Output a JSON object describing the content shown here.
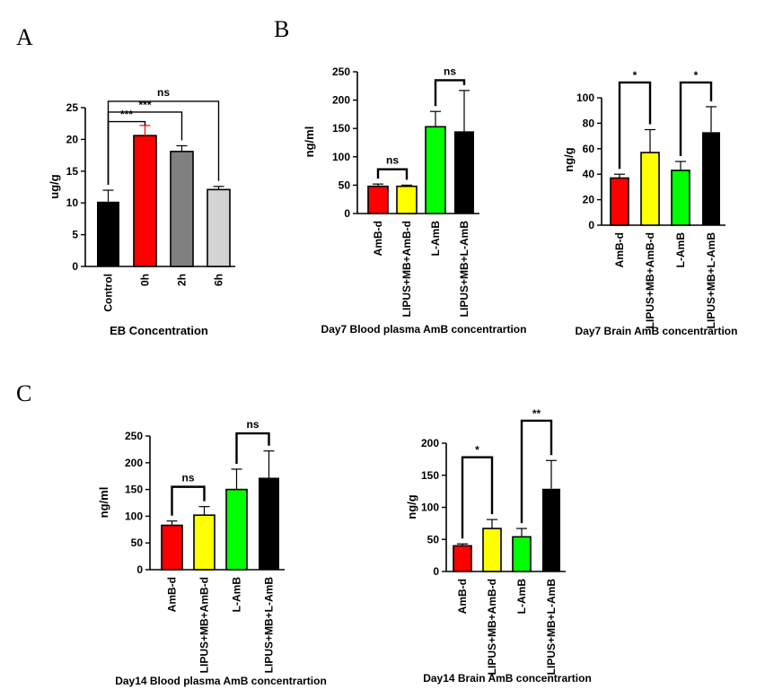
{
  "panel_letters": {
    "a": "A",
    "b": "B",
    "c": "C"
  },
  "chart_data": [
    {
      "id": "eb",
      "type": "bar",
      "subtitle": "EB Concentration",
      "ylabel": "ug/g",
      "ylim": [
        0,
        25
      ],
      "yticks": [
        0,
        5,
        10,
        15,
        20,
        25
      ],
      "categories": [
        "Control",
        "0h",
        "2h",
        "6h"
      ],
      "values": [
        10.2,
        20.6,
        18.1,
        12.1
      ],
      "errors": [
        1.8,
        1.6,
        0.9,
        0.5
      ],
      "colors": [
        "#000000",
        "#ff0000",
        "#808080",
        "#d3d3d3"
      ],
      "significance": [
        {
          "from": 0,
          "to": 3,
          "label": "ns",
          "level": 26.0
        },
        {
          "from": 0,
          "to": 2,
          "label": "***",
          "level": 24.3
        },
        {
          "from": 0,
          "to": 1,
          "label": "***",
          "level": 22.8
        }
      ]
    },
    {
      "id": "d7plasma",
      "type": "bar",
      "subtitle": "Day7 Blood plasma AmB concentrartion",
      "ylabel": "ng/ml",
      "ylim": [
        0,
        250
      ],
      "yticks": [
        0,
        50,
        100,
        150,
        200,
        250
      ],
      "categories": [
        "AmB-d",
        "LIPUS+MB+AmB-d",
        "L-AmB",
        "LIPUS+MB+L-AmB"
      ],
      "values": [
        48,
        48,
        153,
        145
      ],
      "errors": [
        4,
        2,
        27,
        72
      ],
      "colors": [
        "#ff0000",
        "#ffff00",
        "#00ff00",
        "#000000"
      ],
      "significance": [
        {
          "from": 0,
          "to": 1,
          "label": "ns",
          "level": 78
        },
        {
          "from": 2,
          "to": 3,
          "label": "ns",
          "level": 235
        }
      ]
    },
    {
      "id": "d7brain",
      "type": "bar",
      "subtitle": "Day7 Brain AmB concentrartion",
      "ylabel": "ng/g",
      "ylim": [
        0,
        100
      ],
      "yticks": [
        0,
        20,
        40,
        60,
        80,
        100
      ],
      "categories": [
        "AmB-d",
        "LIPUS+MB+AmB-d",
        "L-AmB",
        "LIPUS+MB+L-AmB"
      ],
      "values": [
        37,
        57,
        43,
        73
      ],
      "errors": [
        3,
        18,
        7,
        20
      ],
      "colors": [
        "#ff0000",
        "#ffff00",
        "#00ff00",
        "#000000"
      ],
      "significance": [
        {
          "from": 0,
          "to": 1,
          "label": "*",
          "level": 112
        },
        {
          "from": 2,
          "to": 3,
          "label": "*",
          "level": 112
        }
      ]
    },
    {
      "id": "d14plasma",
      "type": "bar",
      "subtitle": "Day14 Blood plasma AmB concentrartion",
      "ylabel": "ng/ml",
      "ylim": [
        0,
        250
      ],
      "yticks": [
        0,
        50,
        100,
        150,
        200,
        250
      ],
      "categories": [
        "AmB-d",
        "LIPUS+MB+AmB-d",
        "L-AmB",
        "LIPUS+MB+L-AmB"
      ],
      "values": [
        83,
        102,
        150,
        172
      ],
      "errors": [
        8,
        16,
        38,
        50
      ],
      "colors": [
        "#ff0000",
        "#ffff00",
        "#00ff00",
        "#000000"
      ],
      "significance": [
        {
          "from": 0,
          "to": 1,
          "label": "ns",
          "level": 155
        },
        {
          "from": 2,
          "to": 3,
          "label": "ns",
          "level": 255
        }
      ]
    },
    {
      "id": "d14brain",
      "type": "bar",
      "subtitle": "Day14 Brain AmB concentrartion",
      "ylabel": "ng/g",
      "ylim": [
        0,
        200
      ],
      "yticks": [
        0,
        50,
        100,
        150,
        200
      ],
      "categories": [
        "AmB-d",
        "LIPUS+MB+AmB-d",
        "L-AmB",
        "LIPUS+MB+L-AmB"
      ],
      "values": [
        40,
        67,
        54,
        129
      ],
      "errors": [
        3,
        14,
        13,
        44
      ],
      "colors": [
        "#ff0000",
        "#ffff00",
        "#00ff00",
        "#000000"
      ],
      "significance": [
        {
          "from": 0,
          "to": 1,
          "label": "*",
          "level": 178
        },
        {
          "from": 2,
          "to": 3,
          "label": "**",
          "level": 235
        }
      ]
    }
  ]
}
